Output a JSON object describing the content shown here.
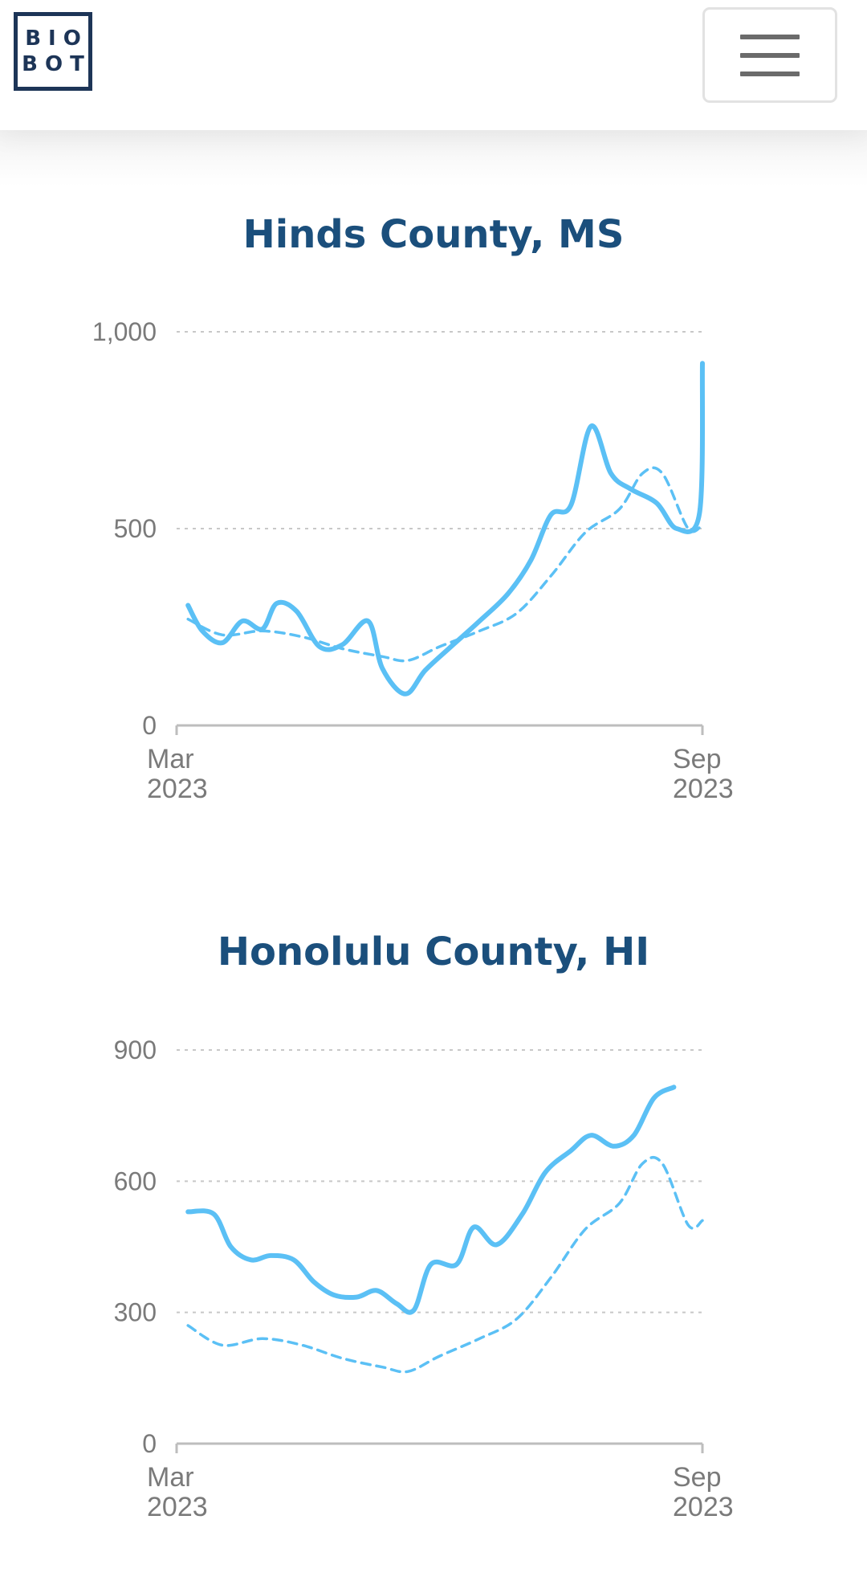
{
  "header": {
    "logo_line1": "BIO",
    "logo_line2": "BOT",
    "menu_icon": "hamburger-menu-icon"
  },
  "colors": {
    "title": "#1b4f7c",
    "line": "#5bc0f5",
    "grid": "#c8c8c8",
    "axis": "#bdbdbd",
    "tick_label": "#7a7a7a",
    "logo": "#1d3557"
  },
  "chart_data": [
    {
      "type": "line",
      "title": "Hinds County, MS",
      "ylim": [
        0,
        1000
      ],
      "yticks": [
        0,
        500,
        1000
      ],
      "ytick_labels": [
        "0",
        "500",
        "1,000"
      ],
      "xlim": [
        "2023-03-01",
        "2023-09-01"
      ],
      "xtick_labels": [
        {
          "month": "Mar",
          "year": "2023"
        },
        {
          "month": "Sep",
          "year": "2023"
        }
      ],
      "grid": true,
      "series": [
        {
          "style": "solid",
          "points": [
            [
              "2023-03-05",
              305
            ],
            [
              "2023-03-10",
              240
            ],
            [
              "2023-03-17",
              210
            ],
            [
              "2023-03-24",
              265
            ],
            [
              "2023-03-31",
              245
            ],
            [
              "2023-04-05",
              310
            ],
            [
              "2023-04-12",
              290
            ],
            [
              "2023-04-20",
              200
            ],
            [
              "2023-04-28",
              205
            ],
            [
              "2023-05-07",
              265
            ],
            [
              "2023-05-12",
              145
            ],
            [
              "2023-05-20",
              80
            ],
            [
              "2023-05-27",
              140
            ],
            [
              "2023-06-05",
              200
            ],
            [
              "2023-06-15",
              265
            ],
            [
              "2023-06-25",
              335
            ],
            [
              "2023-07-03",
              420
            ],
            [
              "2023-07-10",
              535
            ],
            [
              "2023-07-17",
              560
            ],
            [
              "2023-07-24",
              760
            ],
            [
              "2023-07-31",
              640
            ],
            [
              "2023-08-07",
              600
            ],
            [
              "2023-08-16",
              565
            ],
            [
              "2023-08-23",
              500
            ],
            [
              "2023-08-31",
              540
            ],
            [
              "2023-09-01",
              920
            ]
          ]
        },
        {
          "style": "dashed",
          "points": [
            [
              "2023-03-05",
              270
            ],
            [
              "2023-03-17",
              230
            ],
            [
              "2023-03-31",
              240
            ],
            [
              "2023-04-14",
              225
            ],
            [
              "2023-04-28",
              195
            ],
            [
              "2023-05-12",
              175
            ],
            [
              "2023-05-21",
              165
            ],
            [
              "2023-06-01",
              200
            ],
            [
              "2023-06-15",
              240
            ],
            [
              "2023-06-28",
              285
            ],
            [
              "2023-07-10",
              380
            ],
            [
              "2023-07-22",
              490
            ],
            [
              "2023-08-03",
              550
            ],
            [
              "2023-08-11",
              640
            ],
            [
              "2023-08-18",
              640
            ],
            [
              "2023-08-27",
              500
            ],
            [
              "2023-09-01",
              510
            ]
          ]
        }
      ]
    },
    {
      "type": "line",
      "title": "Honolulu County, HI",
      "ylim": [
        0,
        900
      ],
      "yticks": [
        0,
        300,
        600,
        900
      ],
      "ytick_labels": [
        "0",
        "300",
        "600",
        "900"
      ],
      "xlim": [
        "2023-03-01",
        "2023-09-01"
      ],
      "xtick_labels": [
        {
          "month": "Mar",
          "year": "2023"
        },
        {
          "month": "Sep",
          "year": "2023"
        }
      ],
      "grid": true,
      "series": [
        {
          "style": "solid",
          "points": [
            [
              "2023-03-05",
              530
            ],
            [
              "2023-03-14",
              525
            ],
            [
              "2023-03-20",
              450
            ],
            [
              "2023-03-27",
              420
            ],
            [
              "2023-04-03",
              430
            ],
            [
              "2023-04-11",
              420
            ],
            [
              "2023-04-18",
              370
            ],
            [
              "2023-04-25",
              340
            ],
            [
              "2023-05-03",
              335
            ],
            [
              "2023-05-10",
              350
            ],
            [
              "2023-05-17",
              320
            ],
            [
              "2023-05-23",
              305
            ],
            [
              "2023-05-29",
              410
            ],
            [
              "2023-06-07",
              410
            ],
            [
              "2023-06-13",
              495
            ],
            [
              "2023-06-21",
              455
            ],
            [
              "2023-06-30",
              525
            ],
            [
              "2023-07-08",
              620
            ],
            [
              "2023-07-17",
              670
            ],
            [
              "2023-07-24",
              705
            ],
            [
              "2023-08-01",
              680
            ],
            [
              "2023-08-08",
              705
            ],
            [
              "2023-08-15",
              790
            ],
            [
              "2023-08-22",
              815
            ]
          ]
        },
        {
          "style": "dashed",
          "points": [
            [
              "2023-03-05",
              270
            ],
            [
              "2023-03-17",
              225
            ],
            [
              "2023-03-31",
              240
            ],
            [
              "2023-04-14",
              225
            ],
            [
              "2023-04-28",
              195
            ],
            [
              "2023-05-12",
              175
            ],
            [
              "2023-05-21",
              165
            ],
            [
              "2023-06-01",
              200
            ],
            [
              "2023-06-15",
              240
            ],
            [
              "2023-06-28",
              285
            ],
            [
              "2023-07-10",
              380
            ],
            [
              "2023-07-22",
              490
            ],
            [
              "2023-08-03",
              550
            ],
            [
              "2023-08-11",
              640
            ],
            [
              "2023-08-18",
              640
            ],
            [
              "2023-08-27",
              500
            ],
            [
              "2023-09-01",
              510
            ]
          ]
        }
      ]
    }
  ]
}
